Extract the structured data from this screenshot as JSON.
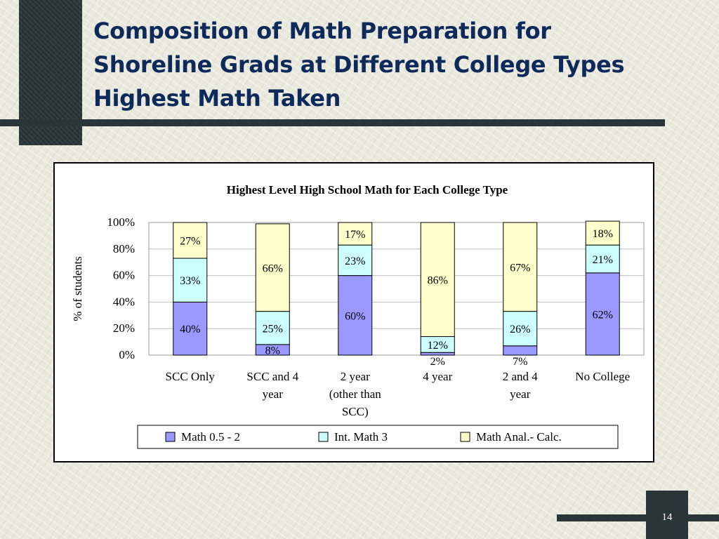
{
  "slide": {
    "title_lines": [
      "Composition of Math Preparation for",
      "Shoreline Grads at Different College Types",
      "Highest Math Taken"
    ],
    "page_number": "14"
  },
  "chart_data": {
    "type": "bar",
    "stacked": true,
    "percent": true,
    "title": "Highest Level High School Math for Each College Type",
    "xlabel": "",
    "ylabel": "% of students",
    "ylim": [
      0,
      100
    ],
    "y_ticks": [
      "0%",
      "20%",
      "40%",
      "60%",
      "80%",
      "100%"
    ],
    "categories": [
      [
        "SCC Only"
      ],
      [
        "SCC and 4",
        "year"
      ],
      [
        "2 year",
        "(other than",
        "SCC)"
      ],
      [
        "4 year"
      ],
      [
        "2 and  4",
        "year"
      ],
      [
        "No College"
      ]
    ],
    "series": [
      {
        "name": "Math 0.5 - 2",
        "color": "#9999ff",
        "values": [
          40,
          8,
          60,
          2,
          7,
          62
        ],
        "labels": [
          "40%",
          "8%",
          "60%",
          "2%",
          "7%",
          "62%"
        ]
      },
      {
        "name": "Int. Math 3",
        "color": "#ccffff",
        "values": [
          33,
          25,
          23,
          12,
          26,
          21
        ],
        "labels": [
          "33%",
          "25%",
          "23%",
          "12%",
          "26%",
          "21%"
        ]
      },
      {
        "name": "Math Anal.- Calc.",
        "color": "#ffffcc",
        "values": [
          27,
          66,
          17,
          86,
          67,
          18
        ],
        "labels": [
          "27%",
          "66%",
          "17%",
          "86%",
          "67%",
          "18%"
        ]
      }
    ],
    "grid": true,
    "legend": "bottom"
  }
}
